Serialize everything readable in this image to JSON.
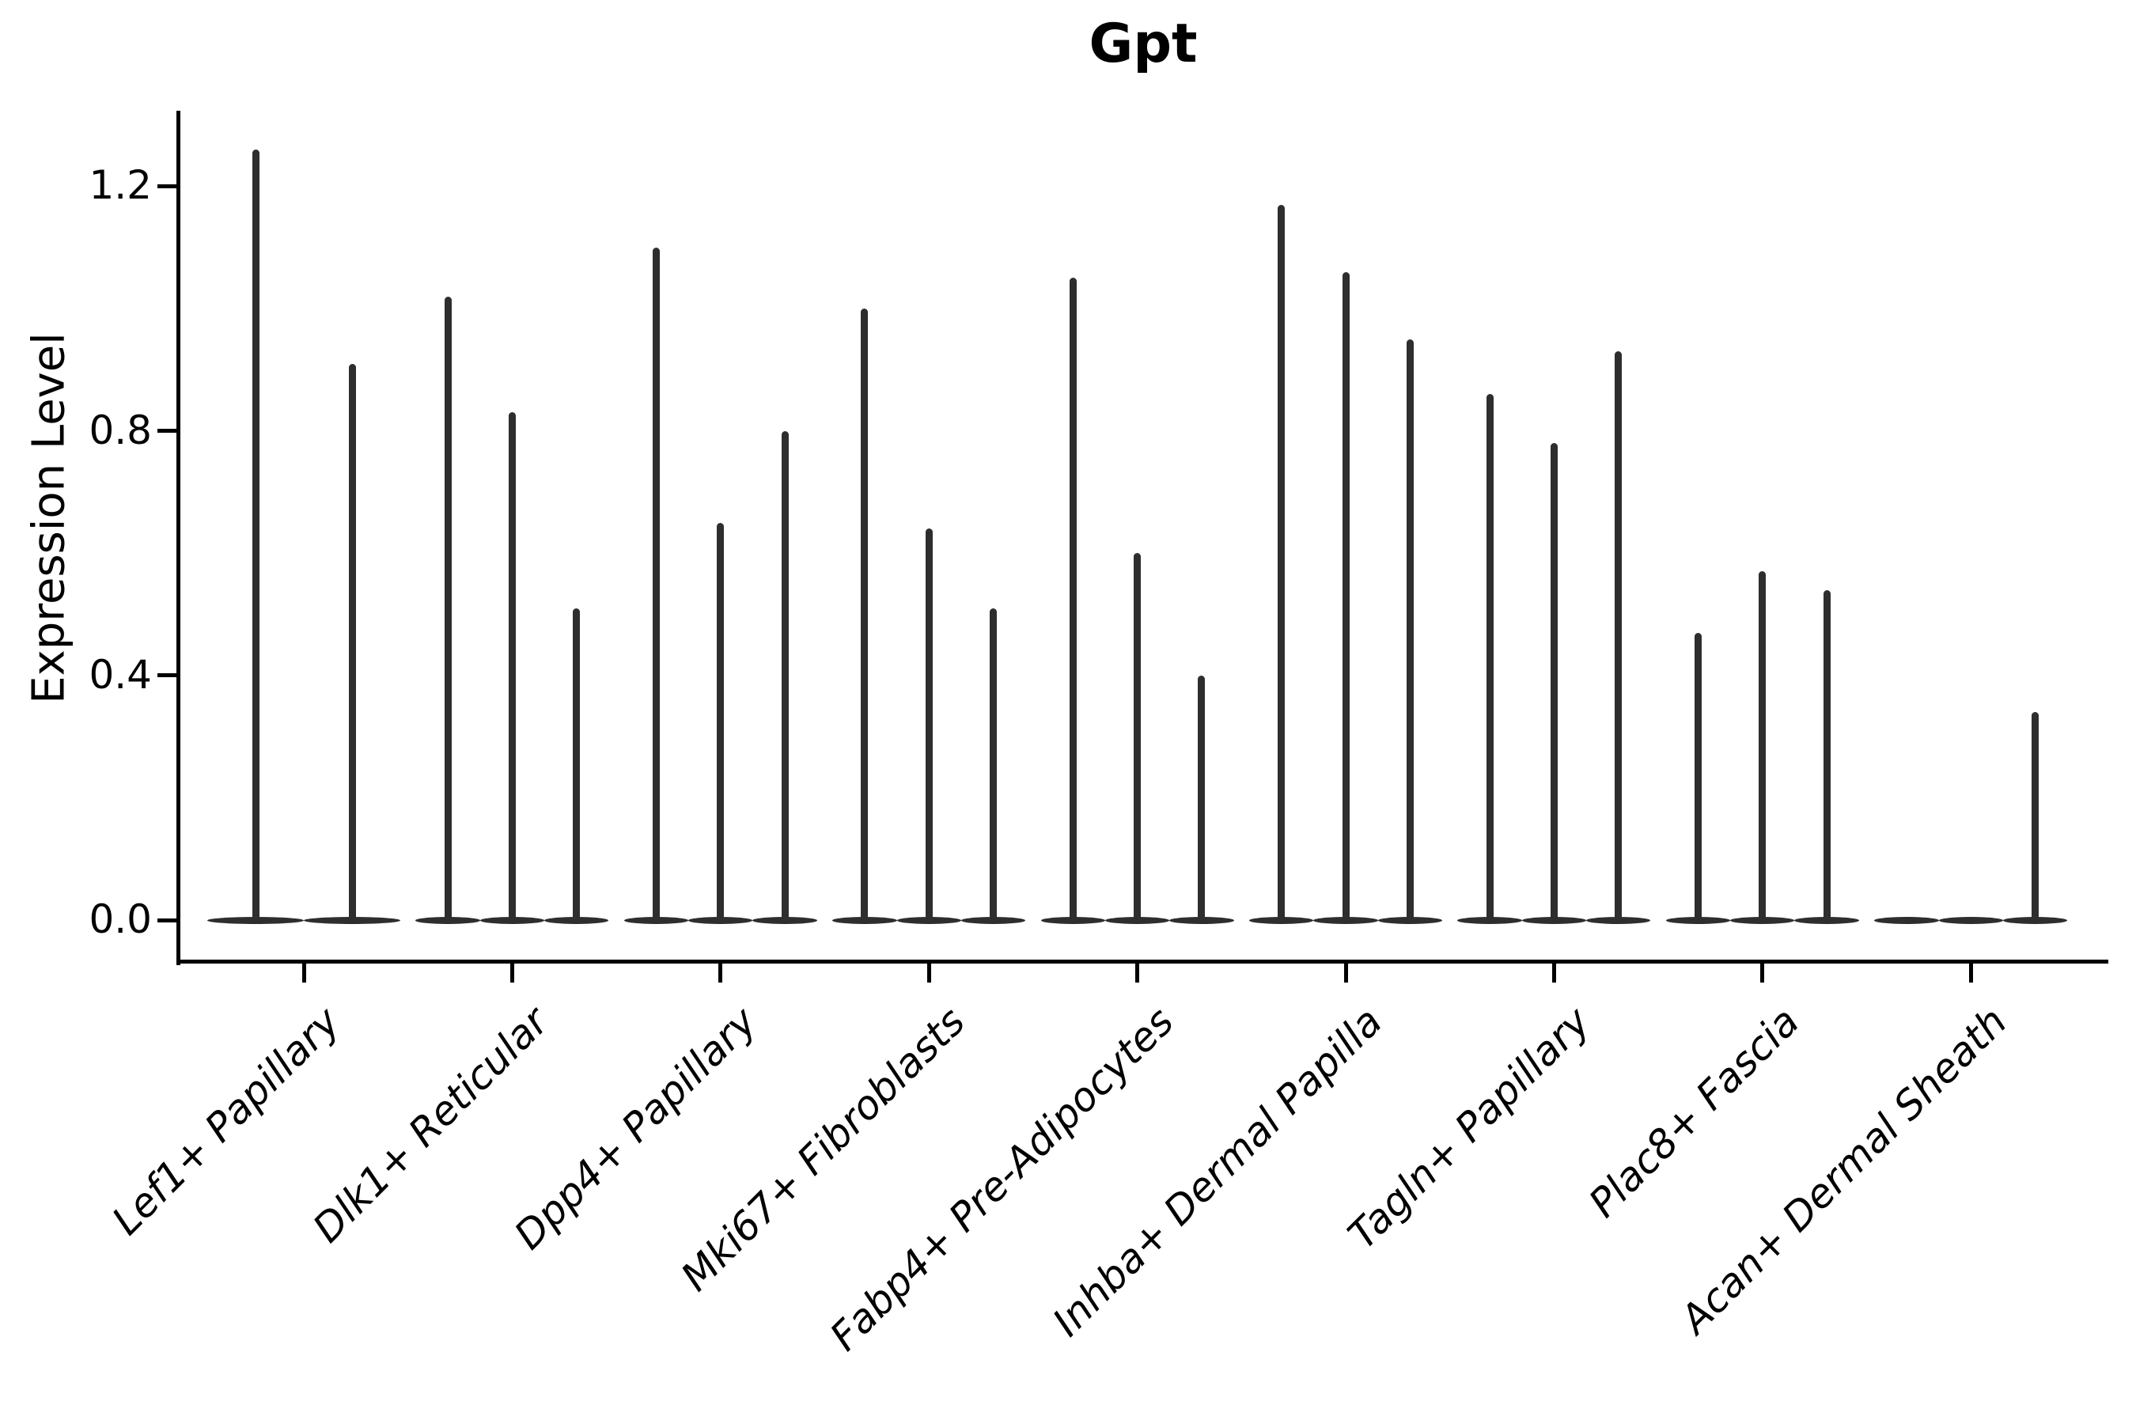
{
  "figure": {
    "background": "#ffffff",
    "ink_color": "#2e2e2e",
    "axis_color": "#000000"
  },
  "chart_data": {
    "type": "violin",
    "title": "Gpt",
    "xlabel": "",
    "ylabel": "Expression Level",
    "ylim": [
      0,
      1.32
    ],
    "yticks": [
      0.0,
      0.4,
      0.8,
      1.2
    ],
    "ytick_labels": [
      "0.0",
      "0.4",
      "0.8",
      "1.2"
    ],
    "grid": false,
    "legend": "none",
    "categories": [
      "Lef1+ Papillary",
      "Dlk1+ Reticular",
      "Dpp4+ Papillary",
      "Mki67+ Fibroblasts",
      "Fabp4+ Pre-Adipocytes",
      "Inhba+ Dermal Papilla",
      "Tagln+ Papillary",
      "Plac8+ Fascia",
      "Acan+ Dermal Sheath"
    ],
    "violin_style": "thin spike violins with wide flat bulge at zero; value listed is the max expression reached by each violin spike; 0 means flat violin at baseline",
    "groups": [
      {
        "category": "Lef1+ Papillary",
        "violin_max": [
          1.26,
          0.91
        ]
      },
      {
        "category": "Dlk1+ Reticular",
        "violin_max": [
          1.02,
          0.83,
          0.51
        ]
      },
      {
        "category": "Dpp4+ Papillary",
        "violin_max": [
          1.1,
          0.65,
          0.8
        ]
      },
      {
        "category": "Mki67+ Fibroblasts",
        "violin_max": [
          1.0,
          0.64,
          0.51
        ]
      },
      {
        "category": "Fabp4+ Pre-Adipocytes",
        "violin_max": [
          1.05,
          0.6,
          0.4
        ]
      },
      {
        "category": "Inhba+ Dermal Papilla",
        "violin_max": [
          1.17,
          1.06,
          0.95
        ]
      },
      {
        "category": "Tagln+ Papillary",
        "violin_max": [
          0.86,
          0.78,
          0.93
        ]
      },
      {
        "category": "Plac8+ Fascia",
        "violin_max": [
          0.47,
          0.57,
          0.54
        ]
      },
      {
        "category": "Acan+ Dermal Sheath",
        "violin_max": [
          0,
          0,
          0.34
        ]
      }
    ]
  }
}
